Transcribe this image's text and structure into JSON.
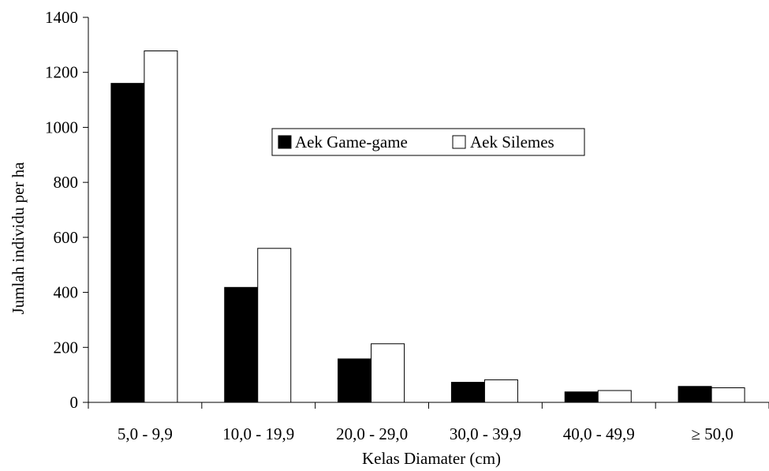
{
  "chart_data": {
    "type": "bar",
    "categories": [
      "5,0 - 9,9",
      "10,0 - 19,9",
      "20,0 - 29,0",
      "30,0 - 39,9",
      "40,0 - 49,9",
      "≥ 50,0"
    ],
    "series": [
      {
        "name": "Aek Game-game",
        "values": [
          1160,
          418,
          158,
          73,
          38,
          58
        ],
        "color": "#000000"
      },
      {
        "name": "Aek Silemes",
        "values": [
          1278,
          560,
          213,
          82,
          43,
          53
        ],
        "color": "#ffffff"
      }
    ],
    "xlabel": "Kelas Diamater (cm)",
    "ylabel": "Jumlah individu per ha",
    "ylim": [
      0,
      1400
    ],
    "yticks": [
      "0",
      "200",
      "400",
      "600",
      "800",
      "1000",
      "1200",
      "1400"
    ],
    "grid": false,
    "legend_position": "upper-center"
  }
}
